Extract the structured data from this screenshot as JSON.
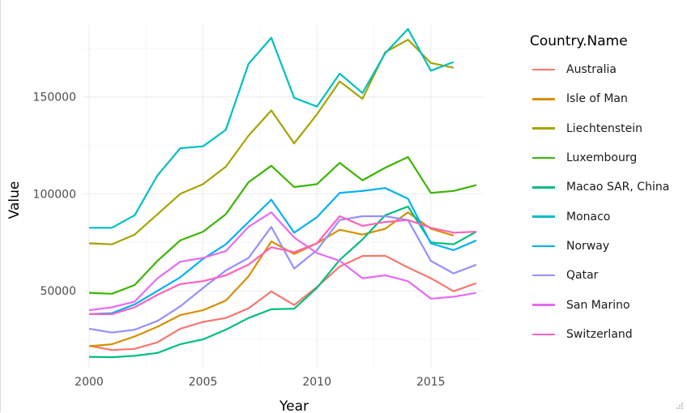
{
  "chart_data": {
    "type": "line",
    "xlabel": "Year",
    "ylabel": "Value",
    "legend_title": "Country.Name",
    "legend_position": "right",
    "grid": true,
    "xlim": [
      2000,
      2017
    ],
    "ylim": [
      10000,
      187000
    ],
    "x_ticks": [
      2000,
      2005,
      2010,
      2015
    ],
    "y_ticks": [
      50000,
      100000,
      150000
    ],
    "x": [
      2000,
      2001,
      2002,
      2003,
      2004,
      2005,
      2006,
      2007,
      2008,
      2009,
      2010,
      2011,
      2012,
      2013,
      2014,
      2015,
      2016,
      2017
    ],
    "series": [
      {
        "name": "Australia",
        "color": "#F8766D",
        "values": [
          21700,
          19500,
          20100,
          23500,
          30500,
          34000,
          36000,
          41000,
          49700,
          42700,
          52000,
          62500,
          68000,
          68100,
          62000,
          56500,
          49800,
          54000
        ]
      },
      {
        "name": "Isle of Man",
        "color": "#D89000",
        "values": [
          21500,
          22500,
          26500,
          31500,
          37500,
          40000,
          45000,
          57500,
          75500,
          69000,
          74500,
          81500,
          79000,
          82000,
          90500,
          82000,
          78500,
          null
        ]
      },
      {
        "name": "Liechtenstein",
        "color": "#A3A500",
        "values": [
          74500,
          74000,
          79000,
          89500,
          100000,
          105000,
          114000,
          130000,
          143000,
          126000,
          141000,
          158000,
          149000,
          173000,
          179500,
          167500,
          165000,
          null
        ]
      },
      {
        "name": "Luxembourg",
        "color": "#39B600",
        "values": [
          49000,
          48500,
          53000,
          65500,
          76000,
          80500,
          89500,
          106000,
          114500,
          103500,
          105000,
          116000,
          107000,
          113500,
          119000,
          100500,
          101500,
          104500
        ]
      },
      {
        "name": "Macao SAR, China",
        "color": "#00BF7D",
        "values": [
          16000,
          15800,
          16500,
          18000,
          22500,
          25000,
          30000,
          36000,
          40500,
          40800,
          51500,
          66000,
          76500,
          89000,
          93500,
          75000,
          74000,
          80500
        ]
      },
      {
        "name": "Monaco",
        "color": "#00BFC4",
        "values": [
          82500,
          82500,
          89000,
          109500,
          123500,
          124500,
          133000,
          167000,
          180500,
          149500,
          145000,
          162000,
          152000,
          172500,
          185000,
          163500,
          168000,
          null
        ]
      },
      {
        "name": "Norway",
        "color": "#00B0F6",
        "values": [
          38000,
          38500,
          43000,
          50000,
          57000,
          66500,
          74000,
          85500,
          97000,
          80000,
          88000,
          100500,
          101500,
          103000,
          97500,
          74500,
          71000,
          76000
        ]
      },
      {
        "name": "Qatar",
        "color": "#9590FF",
        "values": [
          30500,
          28500,
          30000,
          34500,
          42000,
          51500,
          60500,
          67000,
          83000,
          61500,
          71000,
          86500,
          88500,
          88500,
          86500,
          65500,
          59000,
          63500
        ]
      },
      {
        "name": "San Marino",
        "color": "#E76BF3",
        "values": [
          40000,
          41500,
          44500,
          56500,
          65000,
          67000,
          70500,
          83000,
          90500,
          77500,
          69500,
          65500,
          56500,
          58000,
          55000,
          46000,
          47000,
          49000
        ]
      },
      {
        "name": "Switzerland",
        "color": "#FF62BC",
        "values": [
          38000,
          38000,
          41500,
          48000,
          53500,
          55000,
          58000,
          63500,
          72500,
          70000,
          74500,
          88500,
          83500,
          85500,
          86500,
          82500,
          80000,
          80500
        ]
      }
    ]
  }
}
